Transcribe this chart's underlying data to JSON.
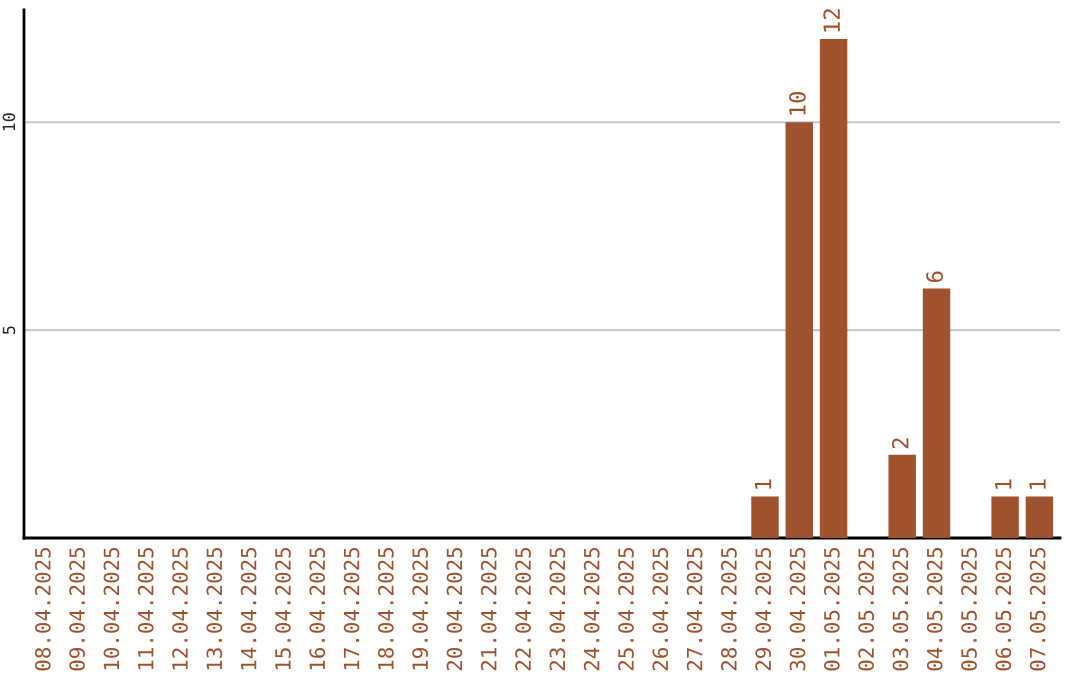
{
  "chart_data": {
    "type": "bar",
    "categories": [
      "08.04.2025",
      "09.04.2025",
      "10.04.2025",
      "11.04.2025",
      "12.04.2025",
      "13.04.2025",
      "14.04.2025",
      "15.04.2025",
      "16.04.2025",
      "17.04.2025",
      "18.04.2025",
      "19.04.2025",
      "20.04.2025",
      "21.04.2025",
      "22.04.2025",
      "23.04.2025",
      "24.04.2025",
      "25.04.2025",
      "26.04.2025",
      "27.04.2025",
      "28.04.2025",
      "29.04.2025",
      "30.04.2025",
      "01.05.2025",
      "02.05.2025",
      "03.05.2025",
      "04.05.2025",
      "05.05.2025",
      "06.05.2025",
      "07.05.2025"
    ],
    "values": [
      0,
      0,
      0,
      0,
      0,
      0,
      0,
      0,
      0,
      0,
      0,
      0,
      0,
      0,
      0,
      0,
      0,
      0,
      0,
      0,
      0,
      1,
      10,
      12,
      0,
      2,
      6,
      0,
      1,
      1
    ],
    "value_labels": [
      null,
      null,
      null,
      null,
      null,
      null,
      null,
      null,
      null,
      null,
      null,
      null,
      null,
      null,
      null,
      null,
      null,
      null,
      null,
      null,
      null,
      "1",
      "10",
      "12",
      null,
      "2",
      "6",
      null,
      "1",
      "1"
    ],
    "color": "#a0522d",
    "ylim": [
      0,
      12.7
    ],
    "yticks": [
      5,
      10
    ],
    "grid": "y"
  }
}
